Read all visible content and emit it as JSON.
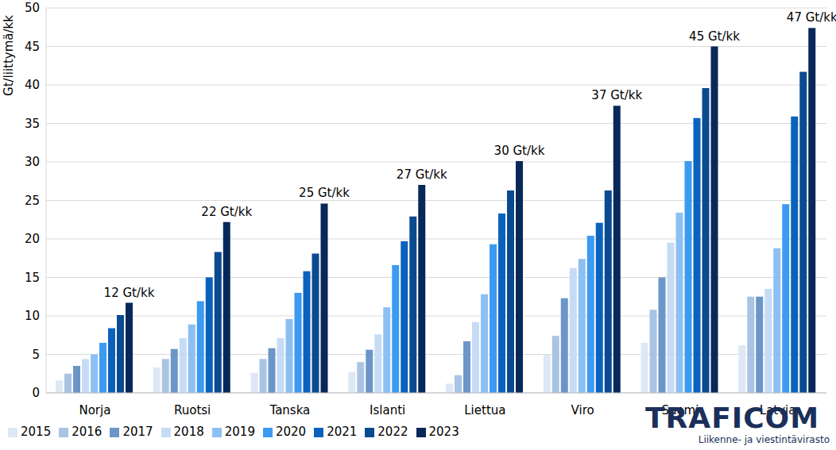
{
  "chart_data": {
    "type": "bar",
    "y_label": "Gt/liittymä/kk",
    "categories": [
      "Norja",
      "Ruotsi",
      "Tanska",
      "Islanti",
      "Liettua",
      "Viro",
      "Suomi",
      "Latvia"
    ],
    "series": [
      {
        "name": "2015",
        "color": "#dde8f4",
        "values": [
          1.6,
          3.3,
          2.6,
          2.7,
          1.2,
          5.0,
          6.5,
          6.2
        ]
      },
      {
        "name": "2016",
        "color": "#a9c4e3",
        "values": [
          2.5,
          4.4,
          4.4,
          4.0,
          2.3,
          7.4,
          10.8,
          12.5
        ]
      },
      {
        "name": "2017",
        "color": "#6c96c8",
        "values": [
          3.5,
          5.7,
          5.8,
          5.6,
          6.7,
          12.3,
          15.0,
          12.5
        ]
      },
      {
        "name": "2018",
        "color": "#c6dcf5",
        "values": [
          4.4,
          7.1,
          7.1,
          7.6,
          9.2,
          16.2,
          19.5,
          13.5
        ]
      },
      {
        "name": "2019",
        "color": "#8cc0f2",
        "values": [
          5.0,
          8.9,
          9.6,
          11.1,
          12.8,
          17.4,
          23.4,
          18.8
        ]
      },
      {
        "name": "2020",
        "color": "#3c9af0",
        "values": [
          6.5,
          11.9,
          13.0,
          16.6,
          19.3,
          20.4,
          30.1,
          24.5
        ]
      },
      {
        "name": "2021",
        "color": "#0b62bd",
        "values": [
          8.4,
          15.0,
          15.8,
          19.7,
          23.3,
          22.1,
          35.7,
          35.9
        ]
      },
      {
        "name": "2022",
        "color": "#0a4a8e",
        "values": [
          10.1,
          18.3,
          18.1,
          22.9,
          26.3,
          26.3,
          39.6,
          41.7
        ]
      },
      {
        "name": "2023",
        "color": "#08285a",
        "values": [
          11.7,
          22.2,
          24.6,
          27.0,
          30.1,
          37.3,
          45.0,
          47.4
        ],
        "data_labels": true,
        "value_labels": [
          "12 Gt/kk",
          "22 Gt/kk",
          "25 Gt/kk",
          "27 Gt/kk",
          "30 Gt/kk",
          "37 Gt/kk",
          "45 Gt/kk",
          "47 Gt/kk"
        ]
      }
    ],
    "ylim": [
      0,
      50
    ],
    "yticks": [
      0,
      5,
      10,
      15,
      20,
      25,
      30,
      35,
      40,
      45,
      50
    ],
    "grid": true,
    "legend": "bottom-left",
    "logo": {
      "name": "TRAFICOM",
      "tagline": "Liikenne- ja viestintävirasto"
    }
  }
}
